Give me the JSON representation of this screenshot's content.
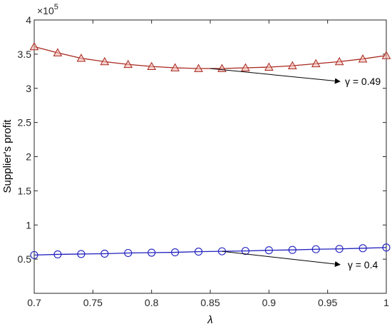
{
  "chart_data": {
    "type": "line",
    "title": "",
    "xlabel": "λ",
    "ylabel": "Supplier's profit",
    "y_exponent_label": "×10",
    "y_exponent_power": "5",
    "xlim": [
      0.7,
      1.0
    ],
    "ylim": [
      0,
      4
    ],
    "x_ticks": [
      0.7,
      0.75,
      0.8,
      0.85,
      0.9,
      0.95,
      1.0
    ],
    "x_tick_labels": [
      "0.7",
      "0.75",
      "0.8",
      "0.85",
      "0.9",
      "0.95",
      "1"
    ],
    "y_ticks": [
      0.5,
      1,
      1.5,
      2,
      2.5,
      3,
      3.5,
      4
    ],
    "y_tick_labels": [
      "0.5",
      "1",
      "1.5",
      "2",
      "2.5",
      "3",
      "3.5",
      "4"
    ],
    "grid": false,
    "series": [
      {
        "name": "γ = 0.49",
        "marker": "triangle",
        "color": "#a8281e",
        "marker_fill": "#f2b8b0",
        "x": [
          0.7,
          0.72,
          0.74,
          0.76,
          0.78,
          0.8,
          0.82,
          0.84,
          0.86,
          0.88,
          0.9,
          0.92,
          0.94,
          0.96,
          0.98,
          1.0
        ],
        "values": [
          3.61,
          3.52,
          3.44,
          3.39,
          3.35,
          3.32,
          3.3,
          3.29,
          3.29,
          3.3,
          3.31,
          3.33,
          3.36,
          3.39,
          3.43,
          3.48
        ]
      },
      {
        "name": "γ = 0.4",
        "marker": "circle",
        "color": "#1f1fbf",
        "marker_fill": "none",
        "x": [
          0.7,
          0.72,
          0.74,
          0.76,
          0.78,
          0.8,
          0.82,
          0.84,
          0.86,
          0.88,
          0.9,
          0.92,
          0.94,
          0.96,
          0.98,
          1.0
        ],
        "values": [
          0.56,
          0.57,
          0.575,
          0.58,
          0.59,
          0.595,
          0.6,
          0.61,
          0.615,
          0.62,
          0.63,
          0.635,
          0.645,
          0.65,
          0.66,
          0.67
        ]
      }
    ],
    "annotations": [
      {
        "text": "γ = 0.49",
        "arrow_to": [
          0.85,
          3.29
        ],
        "text_at": [
          0.98,
          3.1
        ]
      },
      {
        "text": "γ = 0.4",
        "arrow_to": [
          0.86,
          0.615
        ],
        "text_at": [
          0.98,
          0.42
        ]
      }
    ]
  }
}
